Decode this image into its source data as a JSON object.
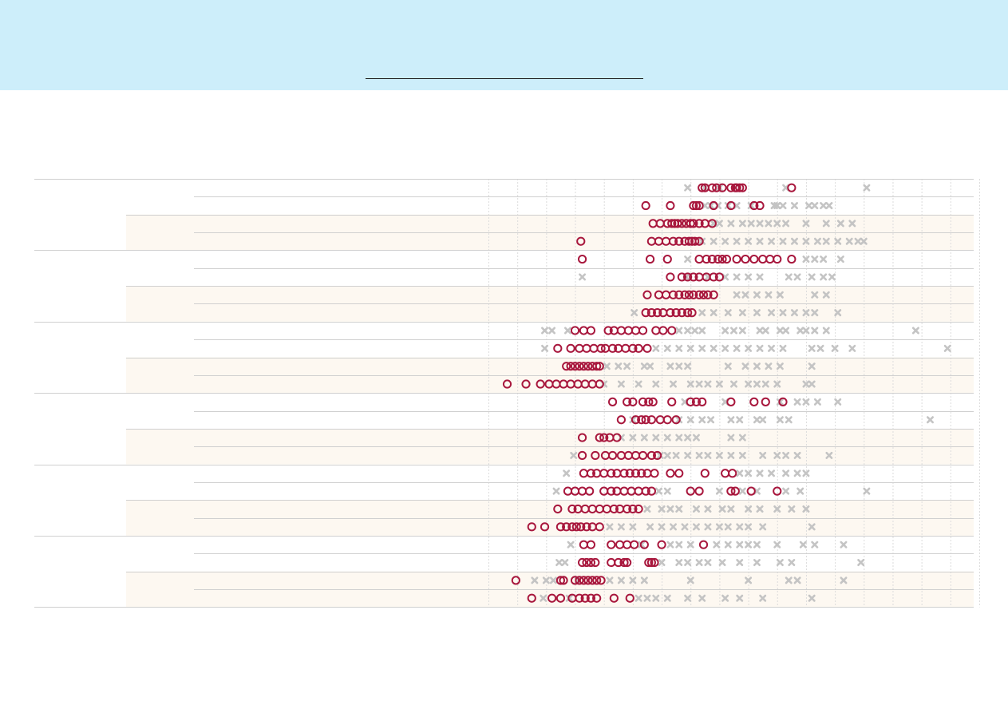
{
  "banner": {
    "color": "#cdeefa",
    "link_text": ""
  },
  "colors": {
    "highlight": "#a8173d",
    "others": "#c4c4c4",
    "band": "#fdf8f1",
    "rule": "#d0d0d0",
    "grid": "#dcdcdc"
  },
  "chart_data": {
    "type": "scatter",
    "title": "",
    "xlabel": "",
    "ylabel": "",
    "grid": true,
    "legend": "none",
    "xlim": [
      0,
      17
    ],
    "group_count": 6,
    "subgroups_per_group": 2,
    "rows_per_subgroup": 2,
    "series": [
      {
        "name": "",
        "marker": "circle",
        "color": "#a8173d"
      },
      {
        "name": "",
        "marker": "cross",
        "color": "#c4c4c4"
      }
    ],
    "rows": [
      {
        "circles": [
          7.4,
          7.5,
          7.75,
          7.9,
          8.1,
          8.4,
          8.55,
          8.6,
          8.7,
          8.8,
          10.5
        ],
        "crosses": [
          6.9,
          7.5,
          8.0,
          10.3,
          13.1
        ]
      },
      {
        "circles": [
          5.45,
          6.3,
          7.1,
          7.2,
          7.3,
          7.8,
          8.4,
          9.2,
          9.4
        ],
        "crosses": [
          7.5,
          7.7,
          7.95,
          8.3,
          8.6,
          9.1,
          9.9,
          10.0,
          10.2,
          10.6,
          11.1,
          11.3,
          11.6,
          11.8
        ]
      },
      {
        "circles": [
          5.7,
          5.95,
          6.2,
          6.35,
          6.45,
          6.55,
          6.7,
          6.85,
          7.0,
          7.1,
          7.3,
          7.5,
          7.75
        ],
        "crosses": [
          7.8,
          8.0,
          8.4,
          8.8,
          9.1,
          9.4,
          9.7,
          10.0,
          10.3,
          11.0,
          11.7,
          12.2,
          12.6
        ]
      },
      {
        "circles": [
          3.2,
          5.65,
          5.9,
          6.15,
          6.4,
          6.6,
          6.8,
          6.95,
          7.05,
          7.15,
          7.3
        ],
        "crosses": [
          7.4,
          7.8,
          8.2,
          8.6,
          9.0,
          9.4,
          9.8,
          10.2,
          10.6,
          11.0,
          11.4,
          11.7,
          12.1,
          12.5,
          12.8,
          13.0
        ]
      },
      {
        "circles": [
          3.25,
          5.6,
          6.2,
          7.3,
          7.55,
          7.75,
          7.95,
          8.1,
          8.25,
          8.6,
          8.9,
          9.2,
          9.5,
          9.75,
          10.0,
          10.5
        ],
        "crosses": [
          6.9,
          11.0,
          11.3,
          11.6,
          12.2
        ]
      },
      {
        "circles": [
          6.3,
          6.7,
          6.9,
          7.1,
          7.3,
          7.55,
          7.8,
          8.0
        ],
        "crosses": [
          3.25,
          6.85,
          7.6,
          8.2,
          8.6,
          9.0,
          9.4,
          10.4,
          10.7,
          11.2,
          11.6,
          11.9
        ]
      },
      {
        "circles": [
          5.5,
          5.9,
          6.15,
          6.4,
          6.6,
          6.8,
          6.95,
          7.1,
          7.3,
          7.45,
          7.6,
          7.8
        ],
        "crosses": [
          8.6,
          8.9,
          9.3,
          9.7,
          10.1,
          11.3,
          11.7
        ]
      },
      {
        "circles": [
          5.45,
          5.65,
          5.85,
          6.05,
          6.3,
          6.5,
          6.7,
          6.9,
          7.05
        ],
        "crosses": [
          5.05,
          7.4,
          7.8,
          8.3,
          8.8,
          9.3,
          9.8,
          10.2,
          10.6,
          11.0,
          11.3,
          12.1
        ]
      },
      {
        "circles": [
          3.0,
          3.3,
          3.55,
          4.15,
          4.35,
          4.6,
          4.85,
          5.1,
          5.35,
          5.8,
          6.05,
          6.35
        ],
        "crosses": [
          1.95,
          2.2,
          2.75,
          6.6,
          6.9,
          7.15,
          7.4,
          8.2,
          8.5,
          8.8,
          9.4,
          9.6,
          10.1,
          10.3,
          10.8,
          11.0,
          11.3,
          11.7,
          14.8
        ]
      },
      {
        "circles": [
          2.4,
          2.85,
          3.15,
          3.4,
          3.65,
          3.9,
          4.05,
          4.3,
          4.5,
          4.75,
          5.0,
          5.2,
          5.5
        ],
        "crosses": [
          1.95,
          5.8,
          6.2,
          6.6,
          7.0,
          7.4,
          7.8,
          8.2,
          8.6,
          9.0,
          9.4,
          9.8,
          10.2,
          11.2,
          11.5,
          12.0,
          12.6,
          15.9
        ]
      },
      {
        "circles": [
          2.7,
          2.85,
          3.0,
          3.15,
          3.3,
          3.45,
          3.6,
          3.75,
          3.85
        ],
        "crosses": [
          4.1,
          4.5,
          4.8,
          5.4,
          5.6,
          6.3,
          6.6,
          6.9,
          8.3,
          8.9,
          9.3,
          9.7,
          10.1,
          11.2
        ]
      },
      {
        "circles": [
          0.65,
          1.3,
          1.8,
          2.1,
          2.35,
          2.6,
          2.85,
          3.1,
          3.35,
          3.6,
          3.85
        ],
        "crosses": [
          4.0,
          4.6,
          5.2,
          5.8,
          6.4,
          7.0,
          7.3,
          7.6,
          8.0,
          8.5,
          9.0,
          9.3,
          9.6,
          10.0,
          11.0,
          11.2
        ]
      },
      {
        "circles": [
          4.3,
          4.8,
          5.0,
          5.35,
          5.55,
          5.7,
          6.35,
          7.0,
          7.2,
          7.4,
          8.4,
          9.2,
          9.6,
          10.2
        ],
        "crosses": [
          6.8,
          8.2,
          10.1,
          10.7,
          11.0,
          11.4,
          12.1
        ]
      },
      {
        "circles": [
          4.6,
          5.1,
          5.3,
          5.45,
          5.65,
          5.95,
          6.2,
          6.5
        ],
        "crosses": [
          5.0,
          6.6,
          7.0,
          7.4,
          7.7,
          8.4,
          8.7,
          9.3,
          9.5,
          10.1,
          10.4,
          15.3
        ]
      },
      {
        "circles": [
          3.25,
          3.85,
          4.0,
          4.2,
          4.45
        ],
        "crosses": [
          4.6,
          5.0,
          5.4,
          5.8,
          6.2,
          6.6,
          6.9,
          7.2,
          8.4,
          8.8
        ]
      },
      {
        "circles": [
          3.25,
          3.7,
          4.05,
          4.3,
          4.6,
          4.85,
          5.1,
          5.35,
          5.65,
          5.85
        ],
        "crosses": [
          2.95,
          5.95,
          6.2,
          6.5,
          6.9,
          7.3,
          7.6,
          8.0,
          8.4,
          8.8,
          9.5,
          10.0,
          10.3,
          10.7,
          11.8
        ]
      },
      {
        "circles": [
          3.3,
          3.55,
          3.75,
          4.0,
          4.25,
          4.45,
          4.7,
          4.9,
          5.1,
          5.3,
          5.5,
          5.75,
          6.3,
          6.6,
          7.5,
          8.2,
          8.45
        ],
        "crosses": [
          2.7,
          8.7,
          9.0,
          9.4,
          9.8,
          10.3,
          10.7,
          11.0
        ]
      },
      {
        "circles": [
          2.75,
          3.0,
          3.25,
          3.5,
          4.0,
          4.25,
          4.45,
          4.7,
          4.95,
          5.2,
          5.45,
          5.65,
          7.0,
          7.3,
          8.4,
          8.55,
          9.1,
          10.0
        ],
        "crosses": [
          2.35,
          5.9,
          6.2,
          8.0,
          8.8,
          9.3,
          10.3,
          10.8,
          13.1
        ]
      },
      {
        "circles": [
          2.4,
          2.9,
          3.1,
          3.35,
          3.6,
          3.85,
          4.1,
          4.35,
          4.55,
          4.8,
          5.0,
          5.2
        ],
        "crosses": [
          5.5,
          6.0,
          6.3,
          6.6,
          7.2,
          7.6,
          8.1,
          8.4,
          9.0,
          9.4,
          10.0,
          10.5,
          11.0
        ]
      },
      {
        "circles": [
          1.5,
          1.95,
          2.5,
          2.7,
          2.9,
          3.05,
          3.2,
          3.4,
          3.6,
          3.85
        ],
        "crosses": [
          4.2,
          4.6,
          5.0,
          5.6,
          6.0,
          6.4,
          6.8,
          7.2,
          7.6,
          8.0,
          8.3,
          8.7,
          9.0,
          9.5,
          11.2
        ]
      },
      {
        "circles": [
          3.3,
          3.55,
          4.25,
          4.55,
          4.8,
          5.05,
          5.4,
          6.0,
          7.45
        ],
        "crosses": [
          2.85,
          5.3,
          6.3,
          6.6,
          7.0,
          7.9,
          8.3,
          8.7,
          9.0,
          9.3,
          10.0,
          10.9,
          11.3,
          12.3
        ]
      },
      {
        "circles": [
          3.25,
          3.4,
          3.55,
          3.7,
          4.25,
          4.5,
          4.7,
          4.8,
          5.55,
          5.65,
          5.75
        ],
        "crosses": [
          2.45,
          2.65,
          6.0,
          6.6,
          6.9,
          7.3,
          7.6,
          8.1,
          8.7,
          9.3,
          10.1,
          10.5,
          12.9
        ]
      },
      {
        "circles": [
          0.95,
          2.5,
          2.6,
          3.0,
          3.15,
          3.3,
          3.45,
          3.6,
          3.75,
          3.9
        ],
        "crosses": [
          1.6,
          2.0,
          2.25,
          3.1,
          4.2,
          4.6,
          5.0,
          5.4,
          7.0,
          9.0,
          10.4,
          10.7,
          12.3
        ]
      },
      {
        "circles": [
          1.5,
          2.2,
          2.5,
          2.9,
          3.15,
          3.35,
          3.55,
          3.75,
          4.35,
          4.9
        ],
        "crosses": [
          1.9,
          2.8,
          5.2,
          5.5,
          5.8,
          6.2,
          6.9,
          7.4,
          8.2,
          8.7,
          9.5,
          11.2
        ]
      }
    ]
  }
}
